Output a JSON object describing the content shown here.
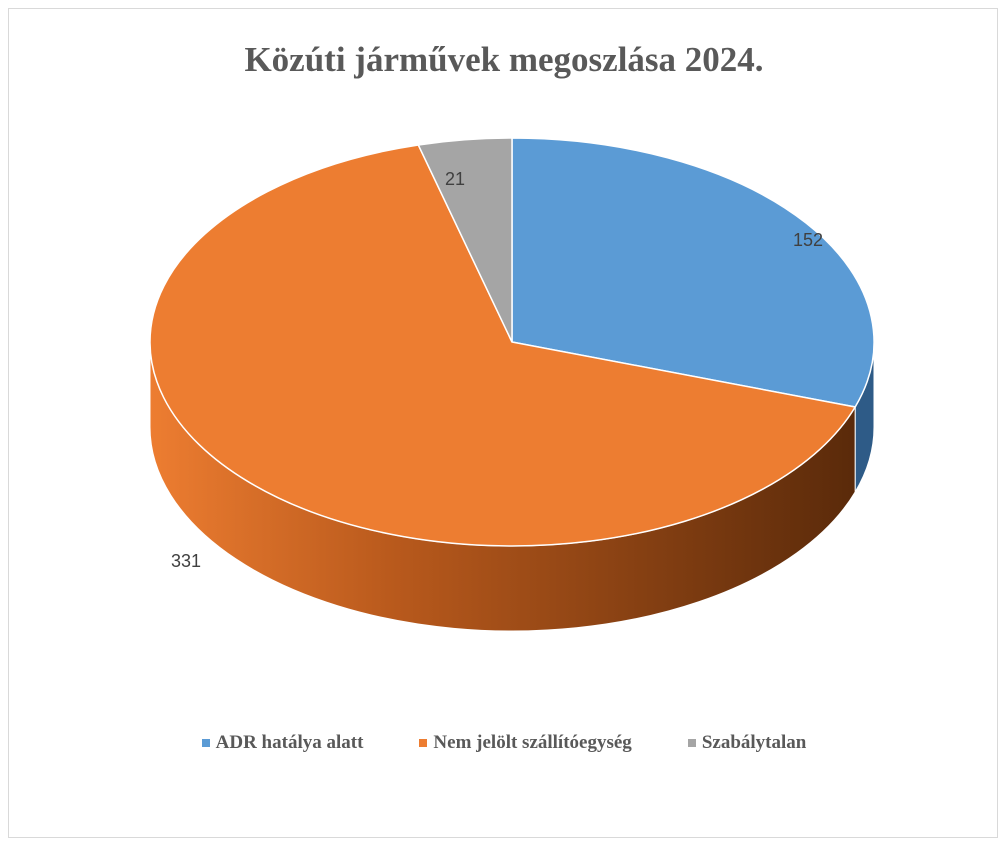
{
  "chart_data": {
    "type": "pie",
    "style": "3d",
    "title": "Közúti járművek megoszlása 2024.",
    "categories": [
      "ADR hatálya alatt",
      "Nem jelölt szállítóegység",
      "Szabálytalan"
    ],
    "values": [
      152,
      331,
      21
    ],
    "data_labels": [
      "152",
      "331",
      "21"
    ],
    "colors": [
      "#5b9bd5",
      "#ed7d31",
      "#a5a5a5"
    ],
    "side_colors": [
      "#2e5b87",
      "#7a3a0e",
      "#6b6b6b"
    ],
    "legend_position": "bottom"
  }
}
